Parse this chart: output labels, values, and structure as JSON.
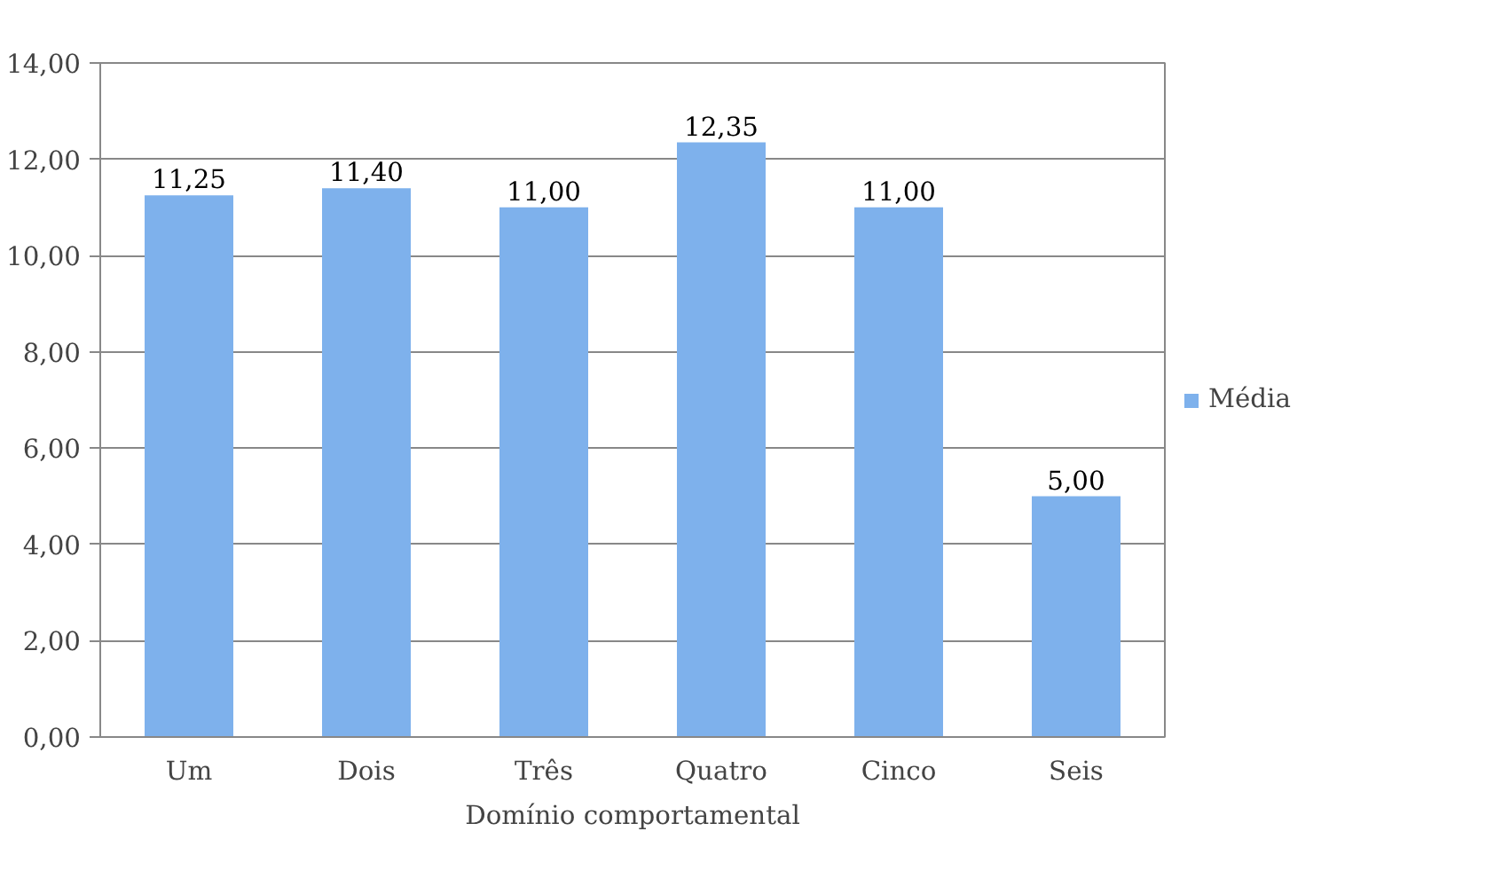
{
  "chart_data": {
    "type": "bar",
    "xlabel": "Domínio comportamental",
    "categories": [
      "Um",
      "Dois",
      "Três",
      "Quatro",
      "Cinco",
      "Seis"
    ],
    "series": [
      {
        "name": "Média",
        "color": "#7eb1ec",
        "values": [
          11.25,
          11.4,
          11.0,
          12.35,
          11.0,
          5.0
        ],
        "value_labels": [
          "11,25",
          "11,40",
          "11,00",
          "12,35",
          "11,00",
          "5,00"
        ]
      }
    ],
    "ylim": [
      0,
      14
    ],
    "yticks": [
      {
        "value": 0,
        "label": "0,00"
      },
      {
        "value": 2,
        "label": "2,00"
      },
      {
        "value": 4,
        "label": "4,00"
      },
      {
        "value": 6,
        "label": "6,00"
      },
      {
        "value": 8,
        "label": "8,00"
      },
      {
        "value": 10,
        "label": "10,00"
      },
      {
        "value": 12,
        "label": "12,00"
      },
      {
        "value": 14,
        "label": "14,00"
      }
    ],
    "grid": "y",
    "legend": "right"
  }
}
